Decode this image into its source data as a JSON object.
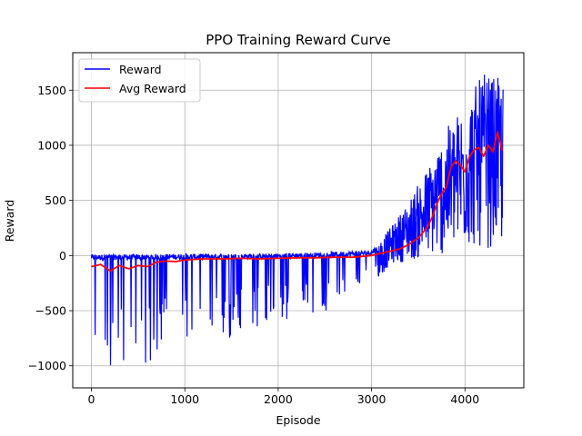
{
  "chart_data": {
    "type": "line",
    "title": "PPO Training Reward Curve",
    "xlabel": "Episode",
    "ylabel": "Reward",
    "xlim": [
      -200,
      4630
    ],
    "ylim": [
      -1200,
      1840
    ],
    "xticks": [
      0,
      1000,
      2000,
      3000,
      4000
    ],
    "yticks": [
      -1000,
      -500,
      0,
      500,
      1000,
      1500
    ],
    "xtick_labels": [
      "0",
      "1000",
      "2000",
      "3000",
      "4000"
    ],
    "ytick_labels": [
      "−1000",
      "−500",
      "0",
      "500",
      "1000",
      "1500"
    ],
    "grid": true,
    "legend_position": "top-left",
    "series": [
      {
        "name": "Reward",
        "color": "#0000ff",
        "num_episodes": 4410,
        "description_points": {
          "x": [
            0,
            500,
            1000,
            1500,
            2000,
            2500,
            3000,
            3200,
            3400,
            3600,
            3800,
            4000,
            4200,
            4400
          ],
          "upper": [
            20,
            20,
            25,
            25,
            30,
            40,
            60,
            250,
            500,
            800,
            1150,
            1400,
            1650,
            1600
          ],
          "lower": [
            -1060,
            -1000,
            -850,
            -780,
            -620,
            -520,
            -300,
            -80,
            -50,
            -30,
            0,
            50,
            60,
            60
          ]
        }
      },
      {
        "name": "Avg Reward",
        "color": "#ff0000",
        "x": [
          0,
          100,
          200,
          300,
          400,
          500,
          600,
          700,
          800,
          900,
          1000,
          1200,
          1400,
          1600,
          1800,
          2000,
          2200,
          2400,
          2600,
          2800,
          3000,
          3100,
          3200,
          3300,
          3400,
          3500,
          3600,
          3650,
          3700,
          3750,
          3800,
          3850,
          3900,
          3950,
          4000,
          4050,
          4100,
          4150,
          4200,
          4250,
          4300,
          4350,
          4400
        ],
        "y": [
          -100,
          -80,
          -140,
          -90,
          -120,
          -90,
          -100,
          -60,
          -50,
          -55,
          -40,
          -30,
          -30,
          -25,
          -30,
          -25,
          -20,
          -20,
          -15,
          -15,
          0,
          20,
          40,
          60,
          100,
          160,
          260,
          350,
          470,
          560,
          620,
          800,
          860,
          820,
          760,
          900,
          960,
          980,
          900,
          1000,
          940,
          1120,
          950
        ]
      }
    ]
  }
}
